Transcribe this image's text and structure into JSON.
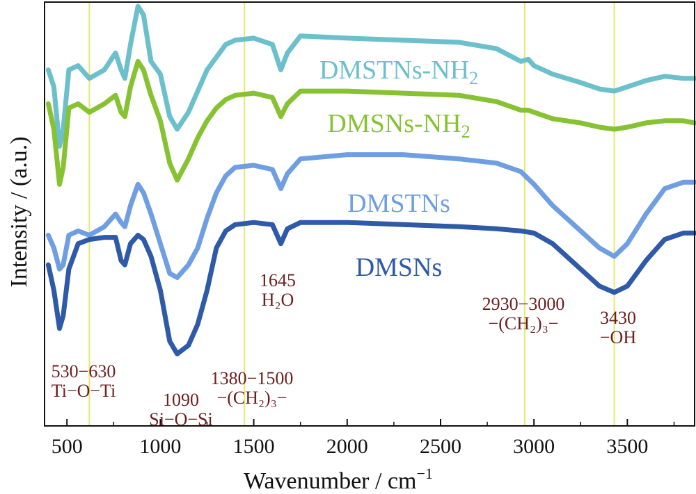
{
  "chart_data": {
    "type": "line",
    "xlabel": "Wavenumber / cm",
    "xlabel_sup": "−1",
    "ylabel": "Intensity / (a.u.)",
    "xlim": [
      380,
      3860
    ],
    "xticks": [
      "500",
      "1000",
      "1500",
      "2000",
      "2500",
      "3000",
      "3500"
    ],
    "yticks_shown": false,
    "grid": false,
    "colors": {
      "DMSTNs-NH2": "#6cc0cc",
      "DMSNs-NH2": "#86c232",
      "DMSTNs": "#6f9fe2",
      "DMSNs": "#2e5aa8",
      "guide": "#e6e96a",
      "annotation": "#6b1e1e"
    },
    "series": [
      {
        "name": "DMSTNs-NH2",
        "label_main": "DMSTNs-NH",
        "label_sub": "2",
        "points": [
          [
            400,
            0.84
          ],
          [
            430,
            0.8
          ],
          [
            460,
            0.66
          ],
          [
            480,
            0.7
          ],
          [
            510,
            0.84
          ],
          [
            560,
            0.85
          ],
          [
            620,
            0.82
          ],
          [
            700,
            0.84
          ],
          [
            760,
            0.88
          ],
          [
            790,
            0.84
          ],
          [
            810,
            0.82
          ],
          [
            840,
            0.9
          ],
          [
            880,
            0.99
          ],
          [
            910,
            0.97
          ],
          [
            950,
            0.86
          ],
          [
            1000,
            0.83
          ],
          [
            1050,
            0.73
          ],
          [
            1090,
            0.7
          ],
          [
            1150,
            0.74
          ],
          [
            1200,
            0.79
          ],
          [
            1250,
            0.84
          ],
          [
            1300,
            0.87
          ],
          [
            1350,
            0.9
          ],
          [
            1400,
            0.91
          ],
          [
            1500,
            0.915
          ],
          [
            1600,
            0.9
          ],
          [
            1645,
            0.84
          ],
          [
            1680,
            0.88
          ],
          [
            1750,
            0.92
          ],
          [
            2000,
            0.915
          ],
          [
            2300,
            0.91
          ],
          [
            2600,
            0.905
          ],
          [
            2800,
            0.89
          ],
          [
            2930,
            0.86
          ],
          [
            2970,
            0.865
          ],
          [
            3000,
            0.85
          ],
          [
            3100,
            0.83
          ],
          [
            3250,
            0.81
          ],
          [
            3350,
            0.795
          ],
          [
            3430,
            0.79
          ],
          [
            3500,
            0.8
          ],
          [
            3600,
            0.815
          ],
          [
            3700,
            0.825
          ],
          [
            3800,
            0.82
          ],
          [
            3860,
            0.82
          ]
        ]
      },
      {
        "name": "DMSNs-NH2",
        "label_main": "DMSNs-NH",
        "label_sub": "2",
        "points": [
          [
            400,
            0.76
          ],
          [
            430,
            0.7
          ],
          [
            460,
            0.57
          ],
          [
            480,
            0.61
          ],
          [
            510,
            0.75
          ],
          [
            560,
            0.76
          ],
          [
            620,
            0.74
          ],
          [
            700,
            0.76
          ],
          [
            760,
            0.78
          ],
          [
            790,
            0.74
          ],
          [
            810,
            0.73
          ],
          [
            840,
            0.8
          ],
          [
            880,
            0.86
          ],
          [
            910,
            0.84
          ],
          [
            950,
            0.78
          ],
          [
            1000,
            0.72
          ],
          [
            1050,
            0.62
          ],
          [
            1090,
            0.58
          ],
          [
            1150,
            0.63
          ],
          [
            1200,
            0.68
          ],
          [
            1250,
            0.72
          ],
          [
            1300,
            0.75
          ],
          [
            1350,
            0.77
          ],
          [
            1400,
            0.78
          ],
          [
            1500,
            0.785
          ],
          [
            1600,
            0.775
          ],
          [
            1645,
            0.73
          ],
          [
            1680,
            0.76
          ],
          [
            1750,
            0.79
          ],
          [
            2000,
            0.79
          ],
          [
            2300,
            0.785
          ],
          [
            2600,
            0.78
          ],
          [
            2800,
            0.765
          ],
          [
            2930,
            0.745
          ],
          [
            2970,
            0.745
          ],
          [
            3000,
            0.74
          ],
          [
            3100,
            0.725
          ],
          [
            3250,
            0.715
          ],
          [
            3350,
            0.705
          ],
          [
            3430,
            0.7
          ],
          [
            3500,
            0.705
          ],
          [
            3600,
            0.715
          ],
          [
            3700,
            0.72
          ],
          [
            3800,
            0.72
          ],
          [
            3860,
            0.715
          ]
        ]
      },
      {
        "name": "DMSTNs",
        "label_main": "DMSTNs",
        "label_sub": "",
        "points": [
          [
            400,
            0.45
          ],
          [
            430,
            0.42
          ],
          [
            460,
            0.37
          ],
          [
            480,
            0.38
          ],
          [
            510,
            0.45
          ],
          [
            560,
            0.46
          ],
          [
            620,
            0.45
          ],
          [
            700,
            0.47
          ],
          [
            760,
            0.5
          ],
          [
            790,
            0.48
          ],
          [
            810,
            0.47
          ],
          [
            840,
            0.52
          ],
          [
            880,
            0.57
          ],
          [
            910,
            0.55
          ],
          [
            950,
            0.5
          ],
          [
            1000,
            0.43
          ],
          [
            1050,
            0.36
          ],
          [
            1090,
            0.35
          ],
          [
            1150,
            0.38
          ],
          [
            1200,
            0.42
          ],
          [
            1250,
            0.49
          ],
          [
            1300,
            0.55
          ],
          [
            1350,
            0.59
          ],
          [
            1400,
            0.61
          ],
          [
            1500,
            0.615
          ],
          [
            1600,
            0.605
          ],
          [
            1645,
            0.56
          ],
          [
            1680,
            0.595
          ],
          [
            1750,
            0.63
          ],
          [
            2000,
            0.64
          ],
          [
            2300,
            0.64
          ],
          [
            2600,
            0.63
          ],
          [
            2800,
            0.62
          ],
          [
            2930,
            0.6
          ],
          [
            3000,
            0.57
          ],
          [
            3100,
            0.52
          ],
          [
            3250,
            0.46
          ],
          [
            3350,
            0.42
          ],
          [
            3430,
            0.4
          ],
          [
            3500,
            0.43
          ],
          [
            3600,
            0.5
          ],
          [
            3700,
            0.56
          ],
          [
            3800,
            0.575
          ],
          [
            3860,
            0.575
          ]
        ]
      },
      {
        "name": "DMSNs",
        "label_main": "DMSNs",
        "label_sub": "",
        "points": [
          [
            400,
            0.38
          ],
          [
            430,
            0.32
          ],
          [
            460,
            0.23
          ],
          [
            480,
            0.26
          ],
          [
            510,
            0.37
          ],
          [
            560,
            0.43
          ],
          [
            620,
            0.44
          ],
          [
            700,
            0.445
          ],
          [
            760,
            0.445
          ],
          [
            790,
            0.39
          ],
          [
            810,
            0.38
          ],
          [
            840,
            0.43
          ],
          [
            880,
            0.45
          ],
          [
            910,
            0.44
          ],
          [
            950,
            0.4
          ],
          [
            1000,
            0.32
          ],
          [
            1050,
            0.2
          ],
          [
            1090,
            0.17
          ],
          [
            1150,
            0.19
          ],
          [
            1200,
            0.24
          ],
          [
            1250,
            0.32
          ],
          [
            1300,
            0.42
          ],
          [
            1350,
            0.46
          ],
          [
            1400,
            0.475
          ],
          [
            1500,
            0.48
          ],
          [
            1600,
            0.475
          ],
          [
            1645,
            0.43
          ],
          [
            1680,
            0.465
          ],
          [
            1750,
            0.48
          ],
          [
            2000,
            0.48
          ],
          [
            2300,
            0.475
          ],
          [
            2600,
            0.47
          ],
          [
            2800,
            0.465
          ],
          [
            2930,
            0.46
          ],
          [
            3000,
            0.455
          ],
          [
            3100,
            0.43
          ],
          [
            3250,
            0.37
          ],
          [
            3350,
            0.33
          ],
          [
            3430,
            0.315
          ],
          [
            3500,
            0.33
          ],
          [
            3600,
            0.39
          ],
          [
            3700,
            0.44
          ],
          [
            3800,
            0.455
          ],
          [
            3860,
            0.455
          ]
        ]
      }
    ],
    "guide_lines": [
      620,
      1450,
      2950,
      3430
    ],
    "annotations": [
      {
        "name": "anno-530-630",
        "lines": [
          "530−630",
          "Ti−O−Ti"
        ]
      },
      {
        "name": "anno-1090",
        "lines": [
          "1090",
          "Si−O−Si"
        ]
      },
      {
        "name": "anno-1380-1500",
        "lines": [
          "1380−1500",
          "−(CH₂)₃−"
        ]
      },
      {
        "name": "anno-1645",
        "lines": [
          "1645",
          "H₂O"
        ]
      },
      {
        "name": "anno-2930-3000",
        "lines": [
          "2930−3000",
          "−(CH₂)₃−"
        ]
      },
      {
        "name": "anno-3430",
        "lines": [
          "3430",
          "−OH"
        ]
      }
    ]
  }
}
